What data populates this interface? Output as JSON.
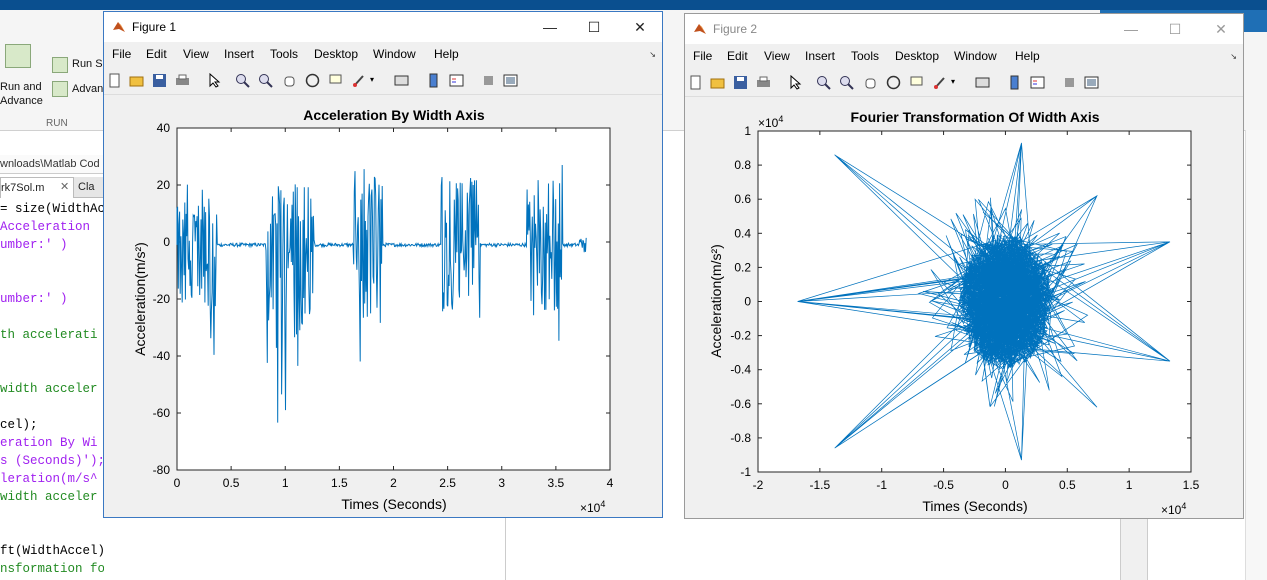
{
  "desktop": {
    "ribbon": {
      "run_section_label": "RUN",
      "run_and_advance_line1": "Run and",
      "run_and_advance_line2": "Advance",
      "run_section_btn": "Run S",
      "advance_btn": "Advan"
    },
    "path_fragment": "wnloads\\Matlab Cod",
    "tabs": [
      {
        "label": "rk7Sol.m"
      },
      {
        "label": "Cla"
      }
    ],
    "code_lines": [
      {
        "text": "= size(WidthAcc",
        "color": "#000000"
      },
      {
        "text": "Acceleration ",
        "color": "#a020f0"
      },
      {
        "text": "umber:' )",
        "color": "#a020f0"
      },
      {
        "text": "",
        "color": "#000000"
      },
      {
        "text": "",
        "color": "#000000"
      },
      {
        "text": "umber:' )",
        "color": "#a020f0"
      },
      {
        "text": "",
        "color": "#000000"
      },
      {
        "text": "th accelerati",
        "color": "#228b22"
      },
      {
        "text": "",
        "color": "#000000"
      },
      {
        "text": "",
        "color": "#000000"
      },
      {
        "text": "width acceler",
        "color": "#228b22"
      },
      {
        "text": "",
        "color": "#000000"
      },
      {
        "text": "cel);",
        "color": "#000000"
      },
      {
        "text": "eration By Wi",
        "color": "#a020f0"
      },
      {
        "text": "s (Seconds)');",
        "color": "#a020f0"
      },
      {
        "text": "leration(m/s^",
        "color": "#a020f0"
      },
      {
        "text": "width acceler",
        "color": "#228b22"
      },
      {
        "text": "",
        "color": "#000000"
      },
      {
        "text": "",
        "color": "#000000"
      },
      {
        "text": "ft(WidthAccel);",
        "color": "#000000"
      },
      {
        "text": "nsformation for Samples",
        "color": "#228b22"
      }
    ]
  },
  "menu_items": [
    "File",
    "Edit",
    "View",
    "Insert",
    "Tools",
    "Desktop",
    "Window",
    "Help"
  ],
  "colors": {
    "line": "#0072bd",
    "titlebar_active_border": "#3a78c2"
  },
  "figure1": {
    "window_title": "Figure 1",
    "chart_data": {
      "type": "line",
      "title": "Acceleration By Width Axis",
      "xlabel": "Times (Seconds)",
      "ylabel": "Acceleration(m/s²)",
      "x_exponent": "×10",
      "x_exponent_power": "4",
      "xlim": [
        0,
        40000
      ],
      "ylim": [
        -80,
        40
      ],
      "xticks": [
        0,
        0.5,
        1,
        1.5,
        2,
        2.5,
        3,
        3.5,
        4
      ],
      "yticks": [
        40,
        20,
        0,
        -20,
        -40,
        -60,
        -80
      ],
      "baseline": -1,
      "bursts": [
        {
          "start": 0,
          "end": 3700,
          "max": 23,
          "min": -42
        },
        {
          "start": 8200,
          "end": 12700,
          "max": 25,
          "min": -64
        },
        {
          "start": 16300,
          "end": 19000,
          "max": 26,
          "min": -50
        },
        {
          "start": 24400,
          "end": 28000,
          "max": 28,
          "min": -44
        },
        {
          "start": 32300,
          "end": 35600,
          "max": 28,
          "min": -45
        },
        {
          "start": 37200,
          "end": 37800,
          "max": 2,
          "min": -4
        }
      ]
    }
  },
  "figure2": {
    "window_title": "Figure 2",
    "chart_data": {
      "type": "line",
      "title": "Fourier Transformation Of Width Axis",
      "xlabel": "Times (Seconds)",
      "ylabel": "Acceleration(m/s²)",
      "x_exponent": "×10",
      "x_exponent_power": "4",
      "y_exponent": "×10",
      "y_exponent_power": "4",
      "xlim": [
        -2,
        1.5
      ],
      "ylim": [
        -1,
        1
      ],
      "xticks": [
        -2,
        -1.5,
        -1,
        -0.5,
        0,
        0.5,
        1,
        1.5
      ],
      "yticks": [
        1,
        0.8,
        0.6,
        0.4,
        0.2,
        0,
        -0.2,
        -0.4,
        -0.6,
        -0.8,
        -1
      ],
      "extreme_points": [
        {
          "x": -1.68,
          "y": 0.0
        },
        {
          "x": -1.38,
          "y": 0.86
        },
        {
          "x": -1.38,
          "y": -0.86
        },
        {
          "x": 1.33,
          "y": 0.35
        },
        {
          "x": 1.33,
          "y": -0.35
        },
        {
          "x": 0.13,
          "y": 0.93
        },
        {
          "x": 0.13,
          "y": -0.93
        },
        {
          "x": 0.74,
          "y": 0.62
        },
        {
          "x": 0.74,
          "y": -0.62
        }
      ]
    }
  }
}
